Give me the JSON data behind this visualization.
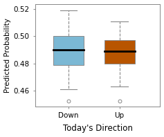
{
  "categories": [
    "Down",
    "Up"
  ],
  "box_data": {
    "Down": {
      "whisker_low": 0.461,
      "q1": 0.479,
      "median": 0.49,
      "q3": 0.5,
      "whisker_high": 0.519,
      "outliers": [
        0.452
      ]
    },
    "Up": {
      "whisker_low": 0.463,
      "q1": 0.48,
      "median": 0.489,
      "q3": 0.497,
      "whisker_high": 0.511,
      "outliers": [
        0.452
      ]
    }
  },
  "colors": [
    "#7bb8d4",
    "#b85500"
  ],
  "ylabel": "Predicted Probability",
  "xlabel": "Today's Direction",
  "ylim": [
    0.448,
    0.524
  ],
  "yticks": [
    0.46,
    0.48,
    0.5,
    0.52
  ],
  "background_color": "#ffffff",
  "ylabel_fontsize": 7.5,
  "xlabel_fontsize": 8.5,
  "tick_fontsize": 7.5
}
